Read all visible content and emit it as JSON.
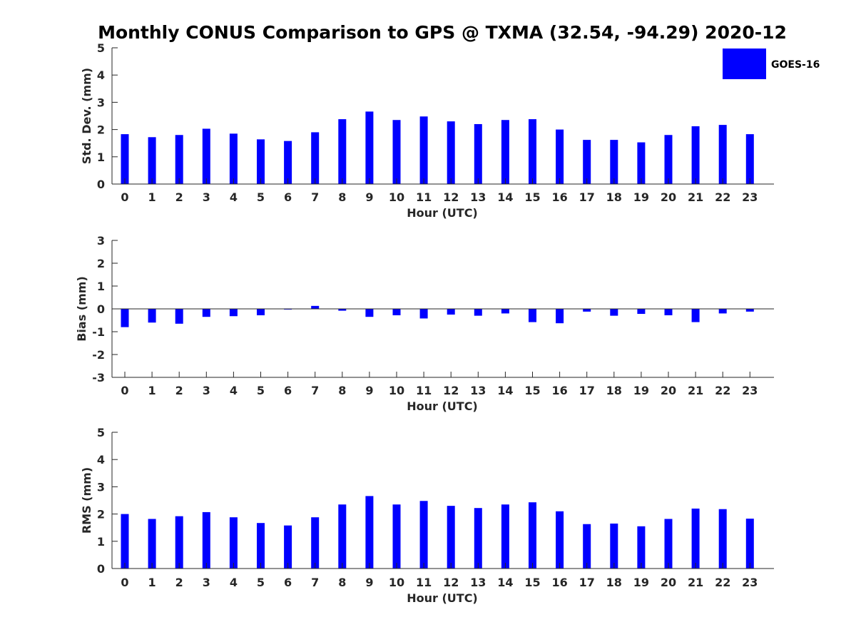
{
  "figure": {
    "title": "Monthly CONUS Comparison to GPS @ TXMA (32.54, -94.29) 2020-12",
    "legend": {
      "label": "GOES-16",
      "color": "#0000ff",
      "placement": "top-right"
    }
  },
  "chart_data": [
    {
      "type": "bar",
      "xlabel": "Hour (UTC)",
      "ylabel": "Std. Dev. (mm)",
      "ylim": [
        0,
        5
      ],
      "yticks": [
        0,
        1,
        2,
        3,
        4,
        5
      ],
      "grid": false,
      "categories": [
        "0",
        "1",
        "2",
        "3",
        "4",
        "5",
        "6",
        "7",
        "8",
        "9",
        "10",
        "11",
        "12",
        "13",
        "14",
        "15",
        "16",
        "17",
        "18",
        "19",
        "20",
        "21",
        "22",
        "23"
      ],
      "series": [
        {
          "name": "GOES-16",
          "color": "#0000ff",
          "values": [
            1.83,
            1.72,
            1.8,
            2.03,
            1.85,
            1.64,
            1.58,
            1.9,
            2.38,
            2.66,
            2.35,
            2.48,
            2.3,
            2.2,
            2.35,
            2.38,
            2.0,
            1.62,
            1.62,
            1.53,
            1.8,
            2.12,
            2.17,
            1.83
          ]
        }
      ]
    },
    {
      "type": "bar",
      "xlabel": "Hour (UTC)",
      "ylabel": "Bias (mm)",
      "ylim": [
        -3,
        3
      ],
      "yticks": [
        -3,
        -2,
        -1,
        0,
        1,
        2,
        3
      ],
      "grid": false,
      "categories": [
        "0",
        "1",
        "2",
        "3",
        "4",
        "5",
        "6",
        "7",
        "8",
        "9",
        "10",
        "11",
        "12",
        "13",
        "14",
        "15",
        "16",
        "17",
        "18",
        "19",
        "20",
        "21",
        "22",
        "23"
      ],
      "series": [
        {
          "name": "GOES-16",
          "color": "#0000ff",
          "values": [
            -0.8,
            -0.6,
            -0.65,
            -0.35,
            -0.32,
            -0.28,
            -0.03,
            0.13,
            -0.08,
            -0.35,
            -0.28,
            -0.42,
            -0.25,
            -0.3,
            -0.2,
            -0.58,
            -0.63,
            -0.12,
            -0.3,
            -0.22,
            -0.28,
            -0.58,
            -0.2,
            -0.12
          ]
        }
      ]
    },
    {
      "type": "bar",
      "xlabel": "Hour (UTC)",
      "ylabel": "RMS (mm)",
      "ylim": [
        0,
        5
      ],
      "yticks": [
        0,
        1,
        2,
        3,
        4,
        5
      ],
      "grid": false,
      "categories": [
        "0",
        "1",
        "2",
        "3",
        "4",
        "5",
        "6",
        "7",
        "8",
        "9",
        "10",
        "11",
        "12",
        "13",
        "14",
        "15",
        "16",
        "17",
        "18",
        "19",
        "20",
        "21",
        "22",
        "23"
      ],
      "series": [
        {
          "name": "GOES-16",
          "color": "#0000ff",
          "values": [
            2.0,
            1.82,
            1.92,
            2.07,
            1.88,
            1.67,
            1.58,
            1.88,
            2.35,
            2.66,
            2.35,
            2.48,
            2.3,
            2.22,
            2.35,
            2.43,
            2.1,
            1.63,
            1.65,
            1.55,
            1.82,
            2.2,
            2.18,
            1.83
          ]
        }
      ]
    }
  ]
}
